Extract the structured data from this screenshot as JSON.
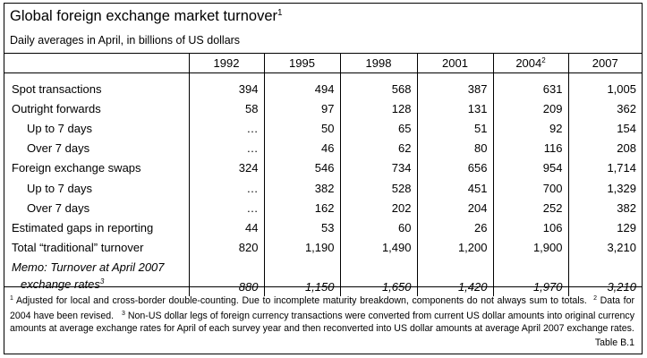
{
  "title": "Global foreign exchange market turnover",
  "title_sup": "1",
  "subtitle": "Daily averages in April, in billions of US dollars",
  "columns": [
    {
      "label": "1992",
      "sup": ""
    },
    {
      "label": "1995",
      "sup": ""
    },
    {
      "label": "1998",
      "sup": ""
    },
    {
      "label": "2001",
      "sup": ""
    },
    {
      "label": "2004",
      "sup": "2"
    },
    {
      "label": "2007",
      "sup": ""
    }
  ],
  "rows": [
    {
      "label": "Spot transactions",
      "indent": false,
      "values": [
        "394",
        "494",
        "568",
        "387",
        "631",
        "1,005"
      ]
    },
    {
      "label": "Outright forwards",
      "indent": false,
      "values": [
        "58",
        "97",
        "128",
        "131",
        "209",
        "362"
      ]
    },
    {
      "label": "Up to 7 days",
      "indent": true,
      "values": [
        "…",
        "50",
        "65",
        "51",
        "92",
        "154"
      ]
    },
    {
      "label": "Over 7 days",
      "indent": true,
      "values": [
        "…",
        "46",
        "62",
        "80",
        "116",
        "208"
      ]
    },
    {
      "label": "Foreign exchange swaps",
      "indent": false,
      "values": [
        "324",
        "546",
        "734",
        "656",
        "954",
        "1,714"
      ]
    },
    {
      "label": "Up to 7 days",
      "indent": true,
      "values": [
        "…",
        "382",
        "528",
        "451",
        "700",
        "1,329"
      ]
    },
    {
      "label": "Over 7 days",
      "indent": true,
      "values": [
        "…",
        "162",
        "202",
        "204",
        "252",
        "382"
      ]
    },
    {
      "label": "Estimated gaps in reporting",
      "indent": false,
      "values": [
        "44",
        "53",
        "60",
        "26",
        "106",
        "129"
      ]
    },
    {
      "label": "Total “traditional” turnover",
      "indent": false,
      "values": [
        "820",
        "1,190",
        "1,490",
        "1,200",
        "1,900",
        "3,210"
      ]
    }
  ],
  "memo": {
    "label_line1": "Memo: Turnover at April 2007",
    "label_line2": "exchange rates",
    "sup": "3",
    "values": [
      "880",
      "1,150",
      "1,650",
      "1,420",
      "1,970",
      "3,210"
    ]
  },
  "footnotes": [
    {
      "sup": "1",
      "text": "Adjusted for local and cross-border double-counting. Due to incomplete maturity breakdown, components do not always sum to totals."
    },
    {
      "sup": "2",
      "text": "Data for 2004 have been revised."
    },
    {
      "sup": "3",
      "text": "Non-US dollar legs of foreign currency transactions were converted from current US dollar amounts into original currency amounts at average exchange rates for April of each survey year and then reconverted into US dollar amounts at average April 2007 exchange rates."
    }
  ],
  "table_ref": "Table B.1"
}
